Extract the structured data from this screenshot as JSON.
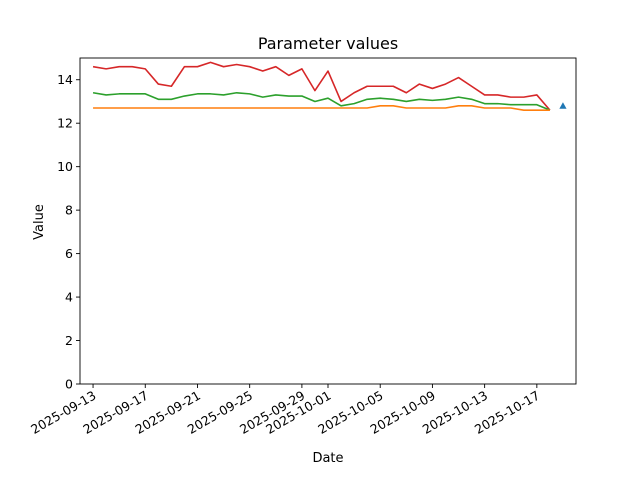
{
  "chart_data": {
    "type": "line",
    "title": "Parameter values",
    "xlabel": "Date",
    "ylabel": "Value",
    "ylim": [
      0,
      15
    ],
    "yticks": [
      0,
      2,
      4,
      6,
      8,
      10,
      12,
      14
    ],
    "xlim": [
      "2025-09-12",
      "2025-10-20"
    ],
    "xticks": [
      "2025-09-13",
      "2025-09-17",
      "2025-09-21",
      "2025-09-25",
      "2025-09-29",
      "2025-10-01",
      "2025-10-05",
      "2025-10-09",
      "2025-10-13",
      "2025-10-17"
    ],
    "grid": false,
    "dates": [
      "2025-09-13",
      "2025-09-14",
      "2025-09-15",
      "2025-09-16",
      "2025-09-17",
      "2025-09-18",
      "2025-09-19",
      "2025-09-20",
      "2025-09-21",
      "2025-09-22",
      "2025-09-23",
      "2025-09-24",
      "2025-09-25",
      "2025-09-26",
      "2025-09-27",
      "2025-09-28",
      "2025-09-29",
      "2025-09-30",
      "2025-10-01",
      "2025-10-02",
      "2025-10-03",
      "2025-10-04",
      "2025-10-05",
      "2025-10-06",
      "2025-10-07",
      "2025-10-08",
      "2025-10-09",
      "2025-10-10",
      "2025-10-11",
      "2025-10-12",
      "2025-10-13",
      "2025-10-14",
      "2025-10-15",
      "2025-10-16",
      "2025-10-17",
      "2025-10-18"
    ],
    "series": [
      {
        "color": "#d62728",
        "values": [
          14.6,
          14.5,
          14.6,
          14.6,
          14.5,
          13.8,
          13.7,
          14.6,
          14.6,
          14.8,
          14.6,
          14.7,
          14.6,
          14.4,
          14.6,
          14.2,
          14.5,
          13.5,
          14.4,
          13.0,
          13.4,
          13.7,
          13.7,
          13.7,
          13.4,
          13.8,
          13.6,
          13.8,
          14.1,
          13.7,
          13.3,
          13.3,
          13.2,
          13.2,
          13.3,
          12.6
        ]
      },
      {
        "color": "#2ca02c",
        "values": [
          13.4,
          13.3,
          13.35,
          13.35,
          13.35,
          13.1,
          13.1,
          13.25,
          13.35,
          13.35,
          13.3,
          13.4,
          13.35,
          13.2,
          13.3,
          13.25,
          13.25,
          13.0,
          13.15,
          12.8,
          12.9,
          13.1,
          13.15,
          13.1,
          13.0,
          13.1,
          13.05,
          13.1,
          13.2,
          13.1,
          12.9,
          12.9,
          12.85,
          12.85,
          12.85,
          12.6
        ]
      },
      {
        "color": "#ff7f0e",
        "values": [
          12.7,
          12.7,
          12.7,
          12.7,
          12.7,
          12.7,
          12.7,
          12.7,
          12.7,
          12.7,
          12.7,
          12.7,
          12.7,
          12.7,
          12.7,
          12.7,
          12.7,
          12.7,
          12.7,
          12.7,
          12.7,
          12.7,
          12.8,
          12.8,
          12.7,
          12.7,
          12.7,
          12.7,
          12.8,
          12.8,
          12.7,
          12.7,
          12.7,
          12.6,
          12.6,
          12.6
        ]
      },
      {
        "color": "#1f77b4",
        "values": [
          null,
          null,
          null,
          null,
          null,
          null,
          null,
          null,
          null,
          null,
          null,
          null,
          null,
          null,
          null,
          null,
          null,
          null,
          null,
          null,
          null,
          null,
          null,
          null,
          null,
          null,
          null,
          null,
          null,
          null,
          null,
          null,
          null,
          null,
          null,
          12.6
        ]
      }
    ],
    "marker": {
      "date": "2025-10-19",
      "value": 12.8,
      "shape": "triangle-up",
      "color": "#1f77b4"
    }
  }
}
